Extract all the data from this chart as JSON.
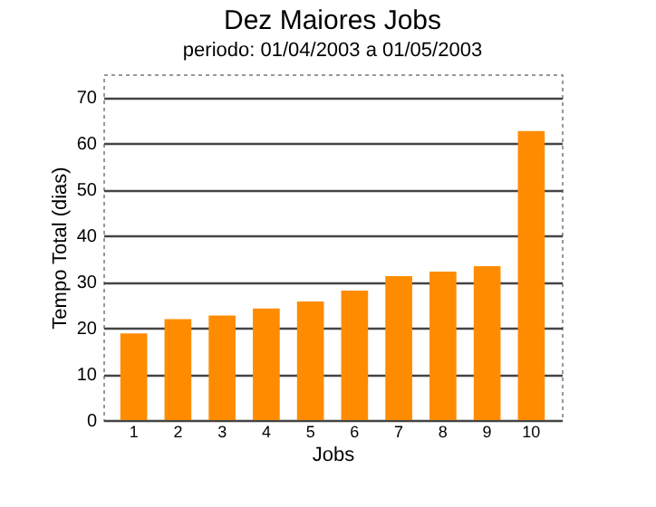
{
  "chart_data": {
    "type": "bar",
    "title": "Dez Maiores Jobs",
    "subtitle": "periodo: 01/04/2003 a 01/05/2003",
    "xlabel": "Jobs",
    "ylabel": "Tempo Total (dias)",
    "categories": [
      "1",
      "2",
      "3",
      "4",
      "5",
      "6",
      "7",
      "8",
      "9",
      "10"
    ],
    "values": [
      18.8,
      21.9,
      22.7,
      24.2,
      25.7,
      28.1,
      31.2,
      32.2,
      33.4,
      62.7
    ],
    "color": "#ff8c00",
    "ylim": [
      0,
      75
    ],
    "yticks": [
      0,
      10,
      20,
      30,
      40,
      50,
      60,
      70
    ],
    "grid": "y"
  }
}
